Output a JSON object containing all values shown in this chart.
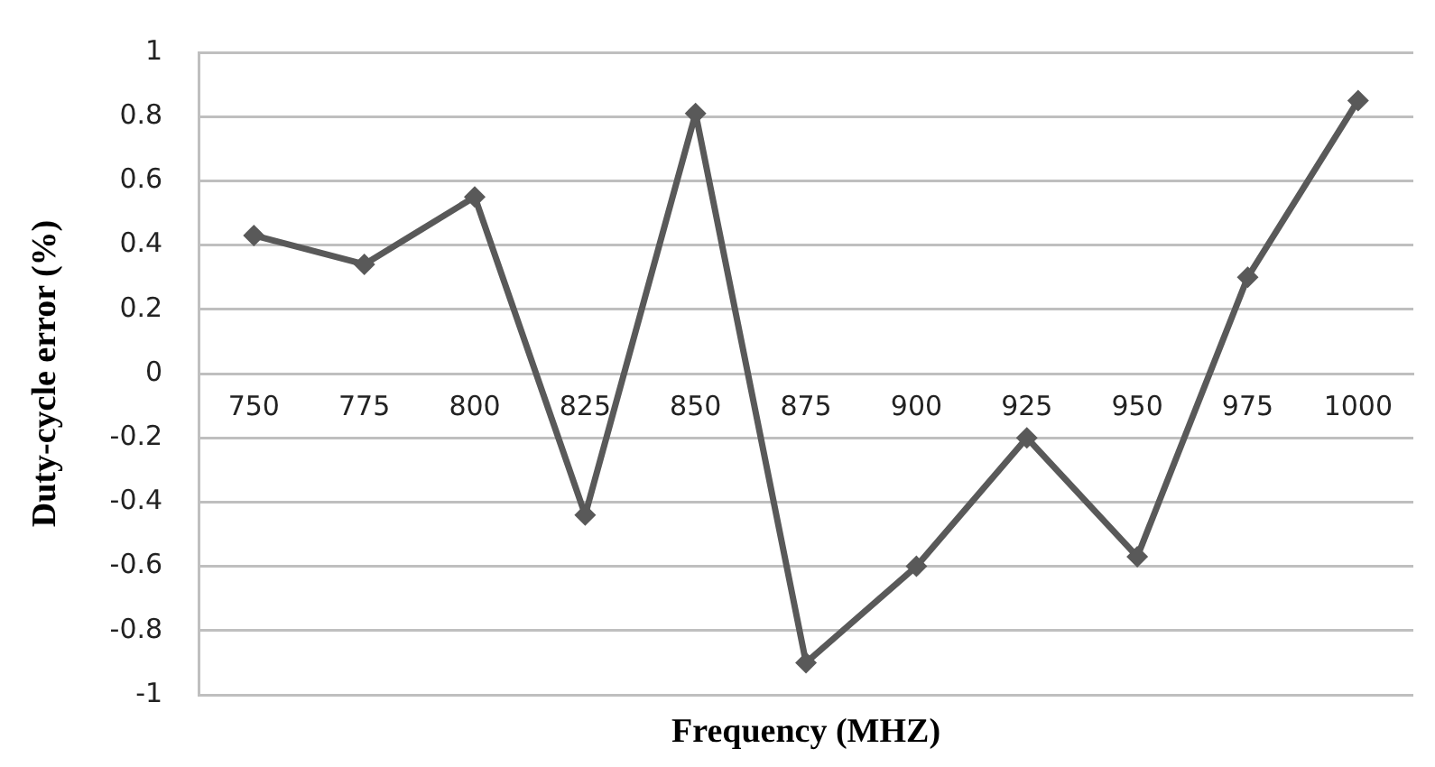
{
  "chart_data": {
    "type": "line",
    "xlabel": "Frequency (MHZ)",
    "ylabel": "Duty-cycle error (%)",
    "categories": [
      "750",
      "775",
      "800",
      "825",
      "850",
      "875",
      "900",
      "925",
      "950",
      "975",
      "1000"
    ],
    "series": [
      {
        "color": "#595959",
        "values": [
          0.43,
          0.34,
          0.55,
          -0.44,
          0.81,
          -0.9,
          -0.6,
          -0.2,
          -0.57,
          0.3,
          0.85
        ]
      }
    ],
    "ylim": [
      -1,
      1
    ],
    "yticks": [
      -1,
      -0.8,
      -0.6,
      -0.4,
      -0.2,
      0,
      0.2,
      0.4,
      0.6,
      0.8,
      1
    ],
    "grid": "y",
    "legend": false,
    "marker": "diamond",
    "line_style": "solid"
  }
}
